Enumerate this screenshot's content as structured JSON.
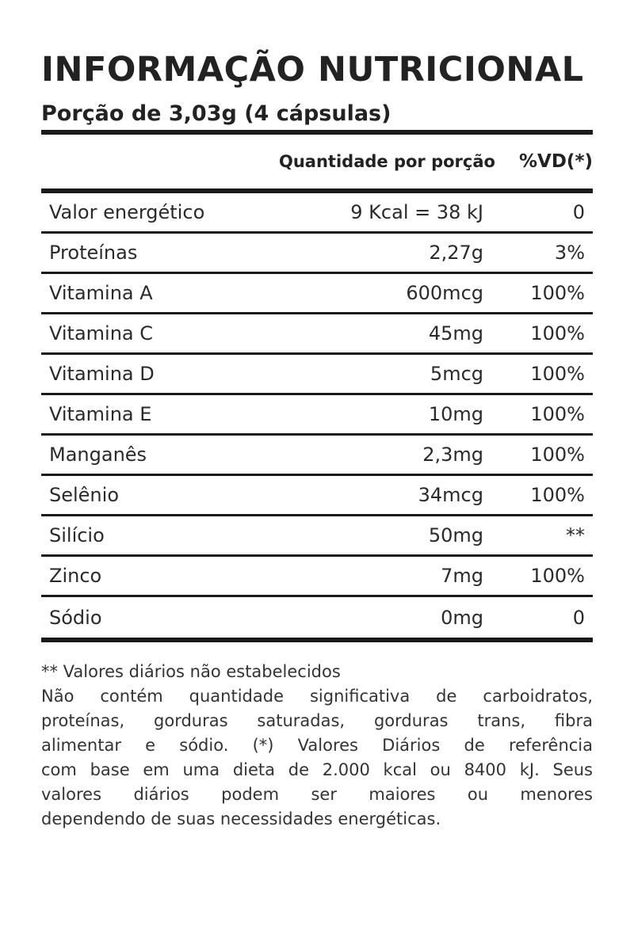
{
  "title": "INFORMAÇÃO NUTRICIONAL",
  "serving": "Porção de 3,03g (4 cápsulas)",
  "table": {
    "headers": {
      "name": "",
      "quantity": "Quantidade por porção",
      "vd": "%VD(*)"
    },
    "rows": [
      {
        "name": "Valor energético",
        "quantity": "9 Kcal = 38 kJ",
        "vd": "0"
      },
      {
        "name": "Proteínas",
        "quantity": "2,27g",
        "vd": "3%"
      },
      {
        "name": "Vitamina A",
        "quantity": "600mcg",
        "vd": "100%"
      },
      {
        "name": "Vitamina C",
        "quantity": "45mg",
        "vd": "100%"
      },
      {
        "name": "Vitamina D",
        "quantity": "5mcg",
        "vd": "100%"
      },
      {
        "name": "Vitamina E",
        "quantity": "10mg",
        "vd": "100%"
      },
      {
        "name": "Manganês",
        "quantity": "2,3mg",
        "vd": "100%"
      },
      {
        "name": "Selênio",
        "quantity": "34mcg",
        "vd": "100%"
      },
      {
        "name": "Silício",
        "quantity": "50mg",
        "vd": "**"
      },
      {
        "name": "Zinco",
        "quantity": "7mg",
        "vd": "100%"
      },
      {
        "name": "Sódio",
        "quantity": "0mg",
        "vd": "0"
      }
    ]
  },
  "notes": [
    "** Valores diários não estabelecidos",
    "Não contém quantidade significativa de carboidratos,",
    "proteínas, gorduras saturadas, gorduras trans, fibra",
    "alimentar e sódio. (*) Valores Diários de referência",
    "com base em uma dieta de 2.000 kcal ou 8400 kJ. Seus",
    "valores diários podem ser maiores ou menores",
    "dependendo de suas necessidades energéticas."
  ]
}
